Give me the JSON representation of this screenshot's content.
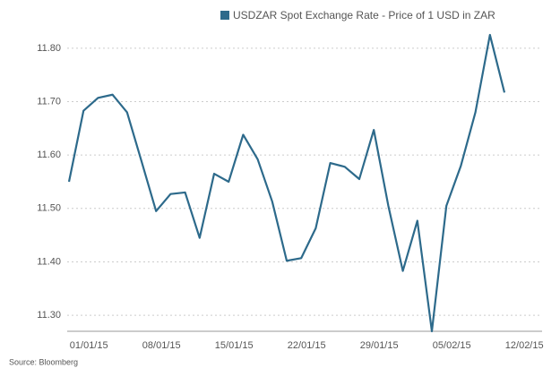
{
  "chart_data": {
    "type": "line",
    "legend": "USDZAR Spot Exchange Rate - Price of 1 USD in ZAR",
    "source": "Source: Bloomberg",
    "color": "#2d6a8b",
    "categories": [
      null,
      "01/01/15",
      null,
      null,
      null,
      null,
      "08/01/15",
      null,
      null,
      null,
      null,
      "15/01/15",
      null,
      null,
      null,
      null,
      "22/01/15",
      null,
      null,
      null,
      null,
      "29/01/15",
      null,
      null,
      null,
      null,
      "05/02/15",
      null,
      null,
      null,
      null,
      "12/02/15"
    ],
    "values": [
      11.55,
      11.683,
      11.707,
      11.713,
      11.68,
      11.588,
      11.495,
      11.527,
      11.53,
      11.445,
      11.565,
      11.55,
      11.638,
      11.592,
      11.513,
      11.402,
      11.407,
      11.463,
      11.585,
      11.578,
      11.555,
      11.647,
      11.505,
      11.383,
      11.477,
      11.27,
      11.505,
      11.58,
      11.68,
      11.825,
      11.717,
      null
    ],
    "ylim": [
      11.27,
      11.84
    ],
    "yticks": [
      {
        "value": 11.3,
        "label": "11.30"
      },
      {
        "value": 11.4,
        "label": "11.40"
      },
      {
        "value": 11.5,
        "label": "11.50"
      },
      {
        "value": 11.6,
        "label": "11.60"
      },
      {
        "value": 11.7,
        "label": "11.70"
      },
      {
        "value": 11.8,
        "label": "11.80"
      }
    ],
    "grid": true
  }
}
